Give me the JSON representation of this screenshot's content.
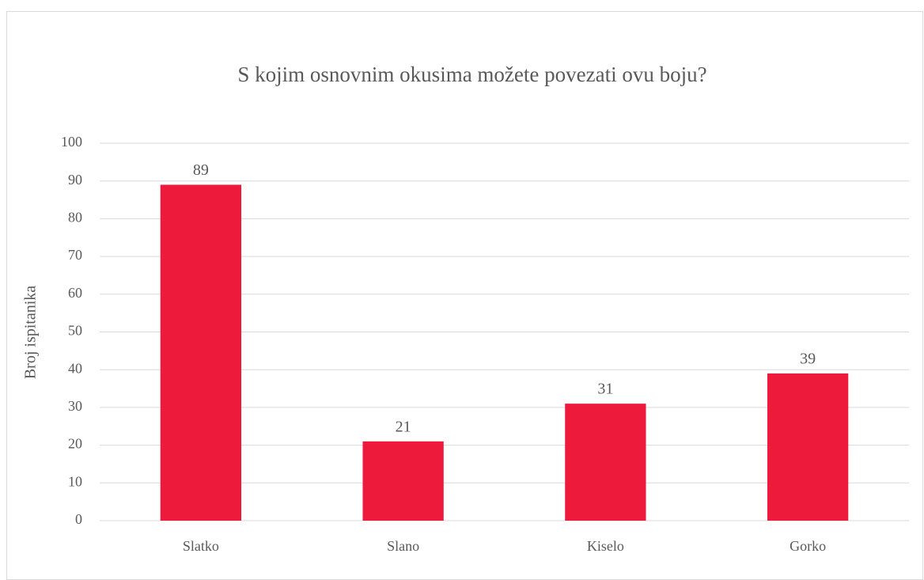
{
  "chart_data": {
    "type": "bar",
    "title": "S kojim osnovnim okusima možete povezati ovu boju?",
    "y_label": "Broj ispitanika",
    "categories": [
      "Slatko",
      "Slano",
      "Kiselo",
      "Gorko"
    ],
    "values": [
      89,
      21,
      31,
      39
    ],
    "color": "#ed1a3b",
    "ylim": [
      0,
      100
    ],
    "yticks": [
      0,
      10,
      20,
      30,
      40,
      50,
      60,
      70,
      80,
      90,
      100
    ],
    "grid": true,
    "data_labels": true
  }
}
